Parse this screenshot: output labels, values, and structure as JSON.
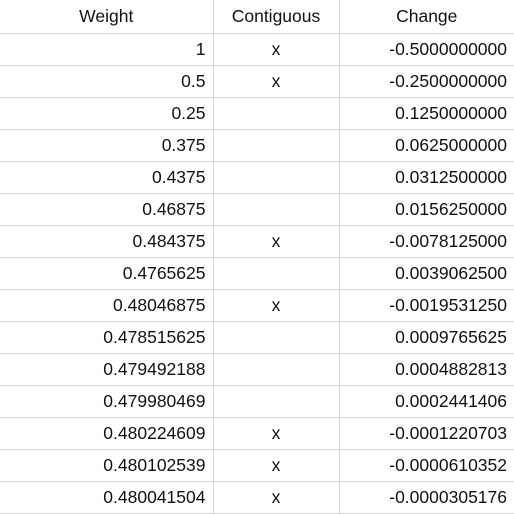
{
  "headers": {
    "weight": "Weight",
    "contiguous": "Contiguous",
    "change": "Change"
  },
  "rows": [
    {
      "weight": "1",
      "contiguous": "x",
      "change": "-0.5000000000"
    },
    {
      "weight": "0.5",
      "contiguous": "x",
      "change": "-0.2500000000"
    },
    {
      "weight": "0.25",
      "contiguous": "",
      "change": "0.1250000000"
    },
    {
      "weight": "0.375",
      "contiguous": "",
      "change": "0.0625000000"
    },
    {
      "weight": "0.4375",
      "contiguous": "",
      "change": "0.0312500000"
    },
    {
      "weight": "0.46875",
      "contiguous": "",
      "change": "0.0156250000"
    },
    {
      "weight": "0.484375",
      "contiguous": "x",
      "change": "-0.0078125000"
    },
    {
      "weight": "0.4765625",
      "contiguous": "",
      "change": "0.0039062500"
    },
    {
      "weight": "0.48046875",
      "contiguous": "x",
      "change": "-0.0019531250"
    },
    {
      "weight": "0.478515625",
      "contiguous": "",
      "change": "0.0009765625"
    },
    {
      "weight": "0.479492188",
      "contiguous": "",
      "change": "0.0004882813"
    },
    {
      "weight": "0.479980469",
      "contiguous": "",
      "change": "0.0002441406"
    },
    {
      "weight": "0.480224609",
      "contiguous": "x",
      "change": "-0.0001220703"
    },
    {
      "weight": "0.480102539",
      "contiguous": "x",
      "change": "-0.0000610352"
    },
    {
      "weight": "0.480041504",
      "contiguous": "x",
      "change": "-0.0000305176"
    }
  ]
}
